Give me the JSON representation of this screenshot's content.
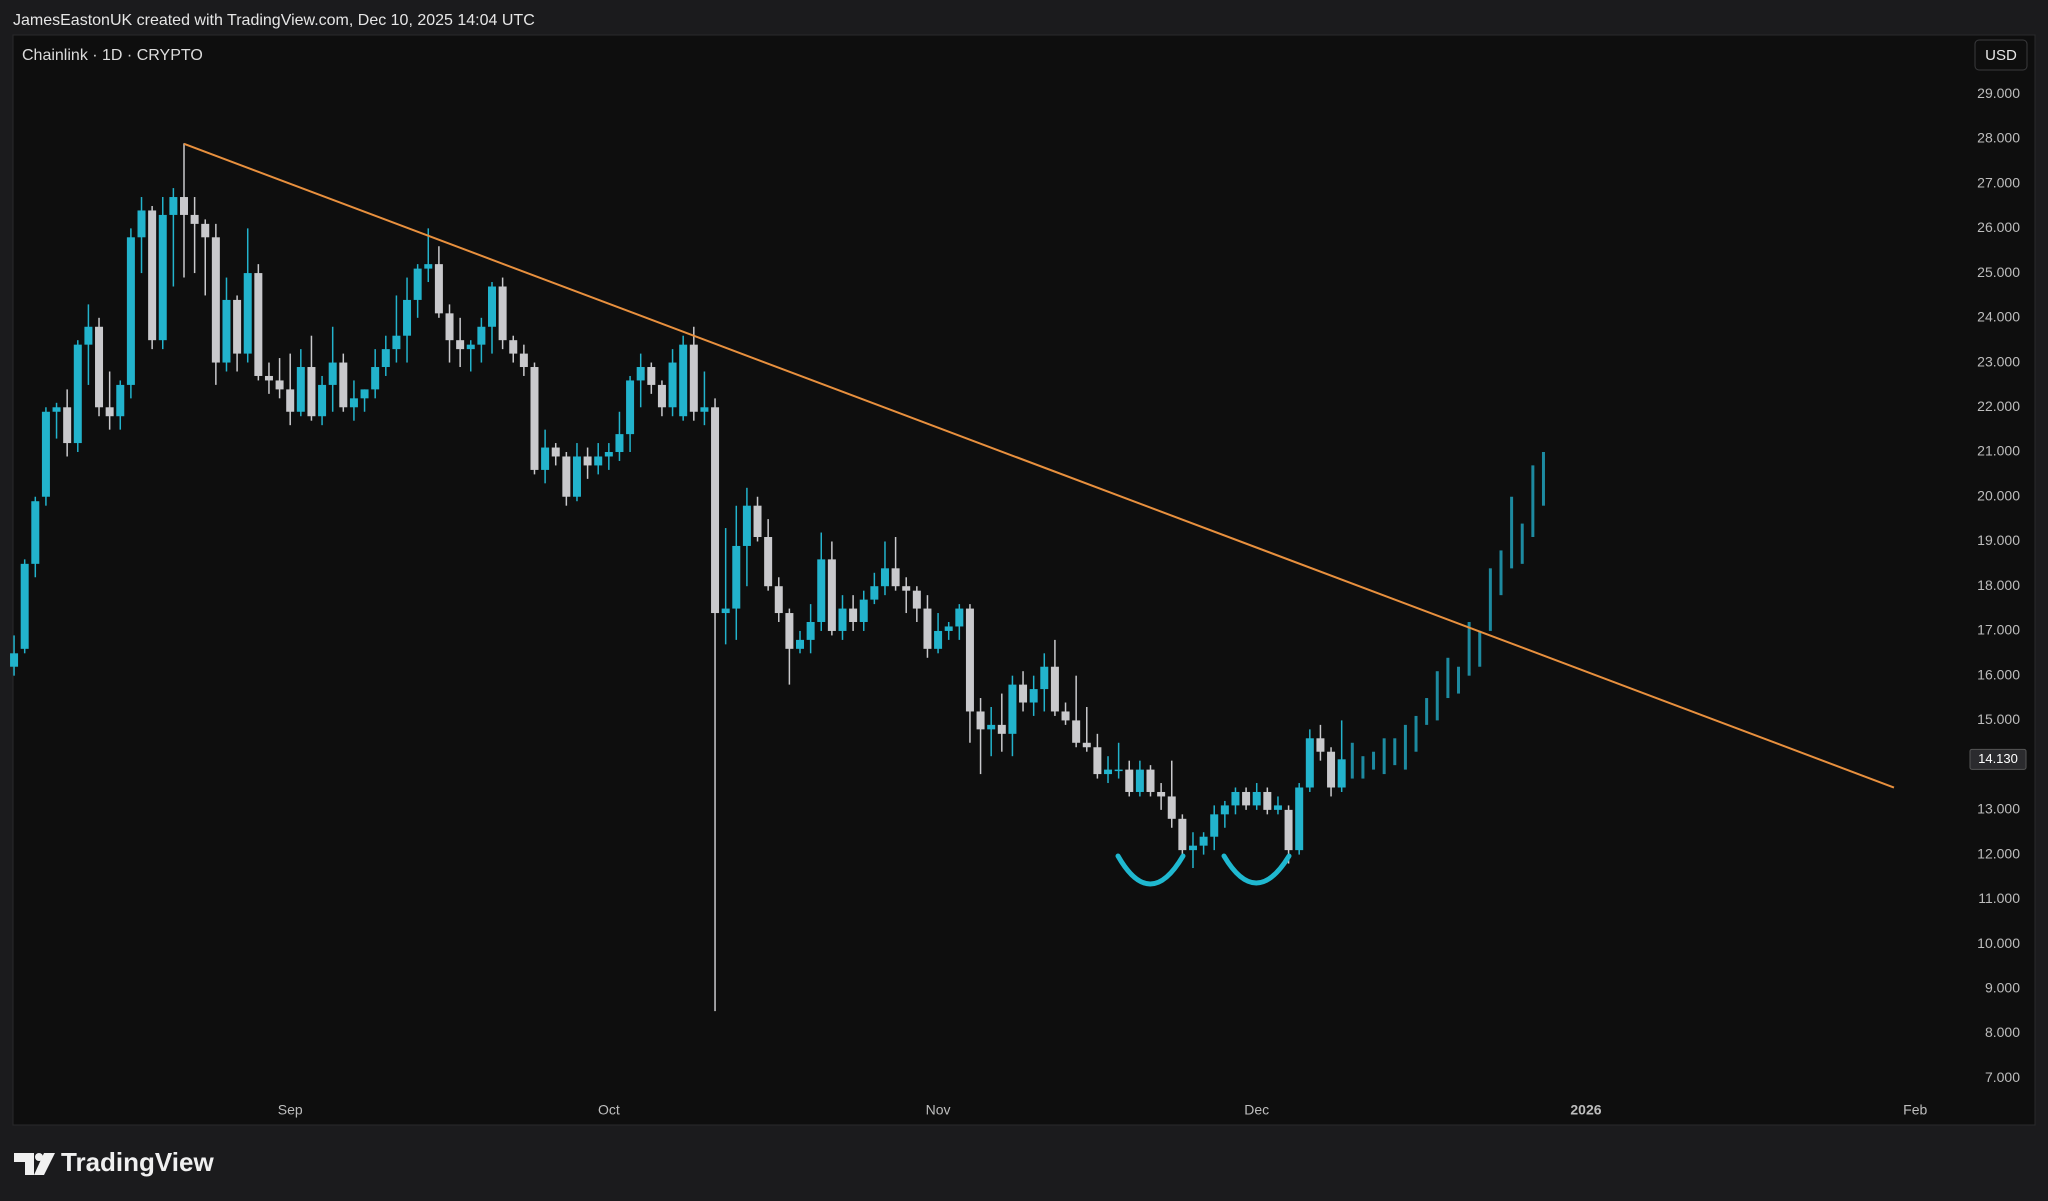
{
  "header": {
    "attribution": "JamesEastonUK created with TradingView.com, Dec 10, 2025 14:04 UTC"
  },
  "footer": {
    "logo": "TradingView"
  },
  "chart_data": {
    "type": "candlestick",
    "title": "Chainlink · 1D · CRYPTO",
    "currency": "USD",
    "up_color": "#22b3cc",
    "down_color": "#c9c9cc",
    "xlim": [
      -26.1,
      157.5
    ],
    "xticks": [
      {
        "value": 0,
        "label": "Sep"
      },
      {
        "value": 30,
        "label": "Oct"
      },
      {
        "value": 61,
        "label": "Nov"
      },
      {
        "value": 91,
        "label": "Dec"
      },
      {
        "value": 122,
        "label": "2026"
      },
      {
        "value": 153,
        "label": "Feb"
      }
    ],
    "ylim": [
      6,
      30.3
    ],
    "yticks": [
      {
        "value": 7,
        "label": "7.000"
      },
      {
        "value": 8,
        "label": "8.000"
      },
      {
        "value": 9,
        "label": "9.000"
      },
      {
        "value": 10,
        "label": "10.000"
      },
      {
        "value": 11,
        "label": "11.000"
      },
      {
        "value": 12,
        "label": "12.000"
      },
      {
        "value": 13,
        "label": "13.000"
      },
      {
        "value": 14,
        "label": "14.000"
      },
      {
        "value": 15,
        "label": "15.000"
      },
      {
        "value": 16,
        "label": "16.000"
      },
      {
        "value": 17,
        "label": "17.000"
      },
      {
        "value": 18,
        "label": "18.000"
      },
      {
        "value": 19,
        "label": "19.000"
      },
      {
        "value": 20,
        "label": "20.000"
      },
      {
        "value": 21,
        "label": "21.000"
      },
      {
        "value": 22,
        "label": "22.000"
      },
      {
        "value": 23,
        "label": "23.000"
      },
      {
        "value": 24,
        "label": "24.000"
      },
      {
        "value": 25,
        "label": "25.000"
      },
      {
        "value": 26,
        "label": "26.000"
      },
      {
        "value": 27,
        "label": "27.000"
      },
      {
        "value": 28,
        "label": "28.000"
      },
      {
        "value": 29,
        "label": "29.000"
      }
    ],
    "candles": {
      "x": [
        -26,
        -25,
        -24,
        -23,
        -22,
        -21,
        -20,
        -19,
        -18,
        -17,
        -16,
        -15,
        -14,
        -13,
        -12,
        -11,
        -10,
        -9,
        -8,
        -7,
        -6,
        -5,
        -4,
        -3,
        -2,
        -1,
        0,
        1,
        2,
        3,
        4,
        5,
        6,
        7,
        8,
        9,
        10,
        11,
        12,
        13,
        14,
        15,
        16,
        17,
        18,
        19,
        20,
        21,
        22,
        23,
        24,
        25,
        26,
        27,
        28,
        29,
        30,
        31,
        32,
        33,
        34,
        35,
        36,
        37,
        38,
        39,
        40,
        41,
        42,
        43,
        44,
        45,
        46,
        47,
        48,
        49,
        50,
        51,
        52,
        53,
        54,
        55,
        56,
        57,
        58,
        59,
        60,
        61,
        62,
        63,
        64,
        65,
        66,
        67,
        68,
        69,
        70,
        71,
        72,
        73,
        74,
        75,
        76,
        77,
        78,
        79,
        80,
        81,
        82,
        83,
        84,
        85,
        86,
        87,
        88,
        89,
        90,
        91,
        92,
        93,
        94,
        95,
        96,
        97,
        98,
        99
      ],
      "ohlc": [
        [
          16.2,
          16.9,
          16.0,
          16.5
        ],
        [
          16.6,
          18.6,
          16.5,
          18.5
        ],
        [
          18.5,
          20.0,
          18.2,
          19.9
        ],
        [
          20.0,
          22.0,
          19.8,
          21.9
        ],
        [
          21.9,
          22.1,
          21.3,
          22.0
        ],
        [
          22.0,
          22.4,
          20.9,
          21.2
        ],
        [
          21.2,
          23.5,
          21.0,
          23.4
        ],
        [
          23.4,
          24.3,
          22.5,
          23.8
        ],
        [
          23.8,
          24.0,
          21.8,
          22.0
        ],
        [
          22.0,
          22.8,
          21.5,
          21.8
        ],
        [
          21.8,
          22.6,
          21.5,
          22.5
        ],
        [
          22.5,
          26.0,
          22.2,
          25.8
        ],
        [
          25.8,
          26.7,
          25.0,
          26.4
        ],
        [
          26.4,
          26.5,
          23.3,
          23.5
        ],
        [
          23.5,
          26.7,
          23.3,
          26.3
        ],
        [
          26.3,
          26.9,
          24.7,
          26.7
        ],
        [
          26.7,
          27.9,
          24.9,
          26.3
        ],
        [
          26.3,
          26.7,
          25.0,
          26.1
        ],
        [
          26.1,
          26.2,
          24.5,
          25.8
        ],
        [
          25.8,
          26.1,
          22.5,
          23.0
        ],
        [
          23.0,
          24.9,
          22.8,
          24.4
        ],
        [
          24.4,
          24.5,
          22.8,
          23.2
        ],
        [
          23.2,
          26.0,
          23.0,
          25.0
        ],
        [
          25.0,
          25.2,
          22.6,
          22.7
        ],
        [
          22.7,
          23.0,
          22.3,
          22.6
        ],
        [
          22.6,
          23.1,
          22.2,
          22.4
        ],
        [
          22.4,
          23.2,
          21.6,
          21.9
        ],
        [
          21.9,
          23.3,
          21.8,
          22.9
        ],
        [
          22.9,
          23.6,
          21.7,
          21.8
        ],
        [
          21.8,
          22.7,
          21.6,
          22.5
        ],
        [
          22.5,
          23.8,
          21.9,
          23.0
        ],
        [
          23.0,
          23.2,
          21.9,
          22.0
        ],
        [
          22.0,
          22.6,
          21.7,
          22.2
        ],
        [
          22.2,
          22.4,
          21.9,
          22.4
        ],
        [
          22.4,
          23.3,
          22.2,
          22.9
        ],
        [
          22.9,
          23.6,
          22.7,
          23.3
        ],
        [
          23.3,
          24.5,
          23.0,
          23.6
        ],
        [
          23.6,
          24.9,
          23.0,
          24.4
        ],
        [
          24.4,
          25.2,
          24.0,
          25.1
        ],
        [
          25.1,
          26.0,
          24.8,
          25.2
        ],
        [
          25.2,
          25.6,
          24.0,
          24.1
        ],
        [
          24.1,
          24.3,
          23.0,
          23.5
        ],
        [
          23.5,
          24.0,
          22.9,
          23.3
        ],
        [
          23.3,
          23.5,
          22.8,
          23.4
        ],
        [
          23.4,
          24.0,
          23.0,
          23.8
        ],
        [
          23.8,
          24.8,
          23.2,
          24.7
        ],
        [
          24.7,
          24.9,
          23.3,
          23.5
        ],
        [
          23.5,
          23.6,
          23.0,
          23.2
        ],
        [
          23.2,
          23.4,
          22.7,
          22.9
        ],
        [
          22.9,
          23.0,
          20.5,
          20.6
        ],
        [
          20.6,
          21.5,
          20.3,
          21.1
        ],
        [
          21.1,
          21.2,
          20.7,
          20.9
        ],
        [
          20.9,
          21.0,
          19.8,
          20.0
        ],
        [
          20.0,
          21.2,
          19.9,
          20.9
        ],
        [
          20.9,
          21.1,
          20.4,
          20.7
        ],
        [
          20.7,
          21.2,
          20.5,
          20.9
        ],
        [
          20.9,
          21.2,
          20.6,
          21.0
        ],
        [
          21.0,
          21.9,
          20.8,
          21.4
        ],
        [
          21.4,
          22.7,
          21.0,
          22.6
        ],
        [
          22.6,
          23.2,
          22.0,
          22.9
        ],
        [
          22.9,
          23.0,
          22.3,
          22.5
        ],
        [
          22.5,
          22.6,
          21.8,
          22.0
        ],
        [
          22.0,
          23.3,
          21.8,
          23.0
        ],
        [
          21.8,
          23.6,
          21.7,
          23.4
        ],
        [
          23.4,
          23.8,
          21.7,
          21.9
        ],
        [
          21.9,
          22.8,
          21.6,
          22.0
        ],
        [
          22.0,
          22.2,
          8.5,
          17.4
        ],
        [
          17.4,
          19.3,
          16.7,
          17.5
        ],
        [
          17.5,
          19.8,
          16.8,
          18.9
        ],
        [
          18.9,
          20.2,
          18.0,
          19.8
        ],
        [
          19.8,
          20.0,
          19.0,
          19.1
        ],
        [
          19.1,
          19.5,
          17.9,
          18.0
        ],
        [
          18.0,
          18.2,
          17.2,
          17.4
        ],
        [
          17.4,
          17.5,
          15.8,
          16.6
        ],
        [
          16.6,
          17.0,
          16.5,
          16.8
        ],
        [
          16.8,
          17.6,
          16.5,
          17.2
        ],
        [
          17.2,
          19.2,
          17.0,
          18.6
        ],
        [
          18.6,
          19.0,
          16.9,
          17.0
        ],
        [
          17.0,
          17.8,
          16.8,
          17.5
        ],
        [
          17.5,
          17.8,
          17.0,
          17.2
        ],
        [
          17.2,
          17.9,
          17.0,
          17.7
        ],
        [
          17.7,
          18.3,
          17.6,
          18.0
        ],
        [
          18.0,
          19.0,
          17.8,
          18.4
        ],
        [
          18.4,
          19.1,
          17.9,
          18.0
        ],
        [
          18.0,
          18.2,
          17.4,
          17.9
        ],
        [
          17.9,
          18.0,
          17.2,
          17.5
        ],
        [
          17.5,
          17.8,
          16.4,
          16.6
        ],
        [
          16.6,
          17.4,
          16.5,
          17.0
        ],
        [
          17.0,
          17.2,
          16.8,
          17.1
        ],
        [
          17.1,
          17.6,
          16.8,
          17.5
        ],
        [
          17.5,
          17.6,
          14.5,
          15.2
        ],
        [
          15.2,
          15.5,
          13.8,
          14.8
        ],
        [
          14.8,
          15.3,
          14.2,
          14.9
        ],
        [
          14.9,
          15.6,
          14.3,
          14.7
        ],
        [
          14.7,
          16.0,
          14.2,
          15.8
        ],
        [
          15.8,
          16.1,
          15.2,
          15.4
        ],
        [
          15.4,
          16.0,
          15.1,
          15.7
        ],
        [
          15.7,
          16.5,
          15.2,
          16.2
        ],
        [
          16.2,
          16.8,
          15.1,
          15.2
        ],
        [
          15.2,
          15.4,
          14.9,
          15.0
        ],
        [
          15.0,
          16.0,
          14.4,
          14.5
        ],
        [
          14.5,
          15.3,
          14.3,
          14.4
        ],
        [
          14.4,
          14.7,
          13.7,
          13.8
        ],
        [
          13.8,
          14.2,
          13.6,
          13.9
        ],
        [
          13.9,
          14.5,
          13.7,
          13.9
        ],
        [
          13.9,
          14.1,
          13.3,
          13.4
        ],
        [
          13.4,
          14.1,
          13.3,
          13.9
        ],
        [
          13.9,
          14.0,
          13.3,
          13.4
        ],
        [
          13.4,
          13.6,
          13.0,
          13.3
        ],
        [
          13.3,
          14.1,
          12.6,
          12.8
        ],
        [
          12.8,
          12.9,
          12.0,
          12.1
        ],
        [
          12.1,
          12.5,
          11.7,
          12.2
        ],
        [
          12.2,
          12.5,
          12.0,
          12.4
        ],
        [
          12.4,
          13.1,
          12.1,
          12.9
        ],
        [
          12.9,
          13.2,
          12.6,
          13.1
        ],
        [
          13.1,
          13.5,
          12.9,
          13.4
        ],
        [
          13.4,
          13.5,
          13.0,
          13.1
        ],
        [
          13.1,
          13.6,
          13.0,
          13.4
        ],
        [
          13.4,
          13.5,
          12.9,
          13.0
        ],
        [
          13.0,
          13.3,
          12.9,
          13.1
        ],
        [
          13.0,
          13.1,
          11.8,
          12.1
        ],
        [
          12.1,
          13.6,
          12.0,
          13.5
        ],
        [
          13.5,
          14.8,
          13.4,
          14.6
        ],
        [
          14.6,
          14.9,
          14.1,
          14.3
        ],
        [
          14.3,
          14.4,
          13.3,
          13.5
        ],
        [
          13.5,
          15.0,
          13.4,
          14.13
        ]
      ]
    },
    "projection": {
      "color": "#1d8aa0",
      "x": [
        100,
        101,
        102,
        103,
        104,
        105,
        106,
        107,
        108,
        109,
        110,
        111,
        112,
        113,
        114,
        115,
        116,
        117,
        118
      ],
      "ranges": [
        [
          13.7,
          14.5
        ],
        [
          13.7,
          14.2
        ],
        [
          13.9,
          14.3
        ],
        [
          13.8,
          14.6
        ],
        [
          14.0,
          14.6
        ],
        [
          13.9,
          14.9
        ],
        [
          14.3,
          15.1
        ],
        [
          14.9,
          15.5
        ],
        [
          15.0,
          16.1
        ],
        [
          15.5,
          16.4
        ],
        [
          15.6,
          16.2
        ],
        [
          16.0,
          17.2
        ],
        [
          16.2,
          17.0
        ],
        [
          17.0,
          18.4
        ],
        [
          17.8,
          18.8
        ],
        [
          18.4,
          20.0
        ],
        [
          18.5,
          19.4
        ],
        [
          19.1,
          20.7
        ],
        [
          19.8,
          21.0
        ]
      ]
    },
    "trendline": {
      "color": "#e8903e",
      "x": [
        -10,
        151
      ],
      "y": [
        27.89,
        13.5
      ]
    },
    "last_price": {
      "value": 14.13,
      "value_label": "14.130"
    }
  }
}
